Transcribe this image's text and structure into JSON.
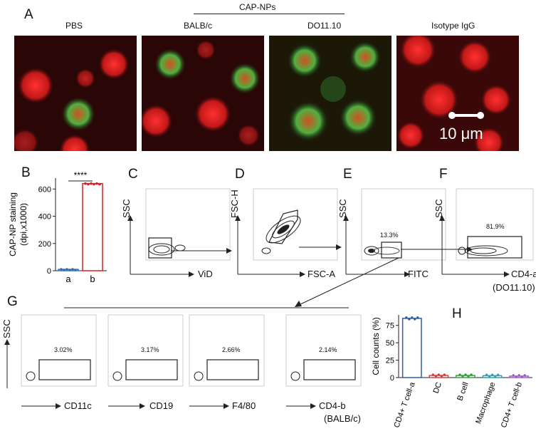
{
  "panels": {
    "A": "A",
    "B": "B",
    "C": "C",
    "D": "D",
    "E": "E",
    "F": "F",
    "G": "G",
    "H": "H"
  },
  "micrographs": {
    "group_header": "CAP-NPs",
    "labels": [
      "PBS",
      "BALB/c",
      "DO11.10",
      "Isotype IgG"
    ],
    "scale_bar": "10 μm"
  },
  "panelB": {
    "ylabel_line1": "CAP-NP staining",
    "ylabel_line2": "(dpi,x1000)",
    "yticks": [
      "0",
      "200",
      "400",
      "600"
    ],
    "significance": "****",
    "xcats": [
      "a",
      "b"
    ]
  },
  "gating": {
    "C": {
      "y": "SSC",
      "x": "ViD",
      "xticks": [
        "0",
        "50K",
        "100K",
        "150K",
        "200K",
        "250K"
      ],
      "yticks": [
        "0",
        "10³",
        "10⁴",
        "10⁵",
        "10⁶"
      ]
    },
    "D": {
      "y": "FSC-H",
      "x": "FSC-A",
      "xticks": [
        "0",
        "2M",
        "4M",
        "6M",
        "8M"
      ],
      "yticks": [
        "0",
        "2M",
        "4M",
        "6M",
        "8M"
      ]
    },
    "E": {
      "y": "SSC",
      "x": "FITC",
      "pct": "13.3%",
      "xticks": [
        "0",
        "50K",
        "100K",
        "150K",
        "200K",
        "250K"
      ]
    },
    "F": {
      "y": "SSC",
      "x": "CD4-a",
      "x2": "(DO11.10)",
      "pct": "81.9%",
      "xticks": [
        "0",
        "2M",
        "4M",
        "6M",
        "8M"
      ]
    }
  },
  "panelG": {
    "ylabel": "SSC",
    "plots": [
      {
        "x": "CD11c",
        "pct": "3.02%"
      },
      {
        "x": "CD19",
        "pct": "3.17%"
      },
      {
        "x": "F4/80",
        "pct": "2.66%"
      },
      {
        "x": "CD4-b",
        "x2": "(BALB/c)",
        "pct": "2.14%"
      }
    ],
    "xticks": [
      "0",
      "2M",
      "4M",
      "6M",
      "8M"
    ],
    "yticks": [
      "0",
      "10³",
      "10⁴",
      "10⁵",
      "10⁶"
    ]
  },
  "chart_data": [
    {
      "type": "bar",
      "panel": "B",
      "categories": [
        "a",
        "b"
      ],
      "values": [
        10,
        640
      ],
      "ylabel": "CAP-NP staining (dpi,x1000)",
      "ylim": [
        0,
        680
      ],
      "colors": [
        "#3a6fb0",
        "#d62020"
      ]
    },
    {
      "type": "bar",
      "panel": "H",
      "categories": [
        "CD4+ T cell-a",
        "DC",
        "B cell",
        "Macrophage",
        "CD4+ T cell-b"
      ],
      "values": [
        85,
        3,
        3,
        2.7,
        2.1
      ],
      "ylabel": "Cell counts (%)",
      "yticks": [
        "0",
        "25",
        "50",
        "75"
      ],
      "ylim": [
        0,
        90
      ],
      "colors": [
        "#2e5fa0",
        "#d94040",
        "#3aa040",
        "#30a0b0",
        "#9a60c0"
      ]
    }
  ]
}
